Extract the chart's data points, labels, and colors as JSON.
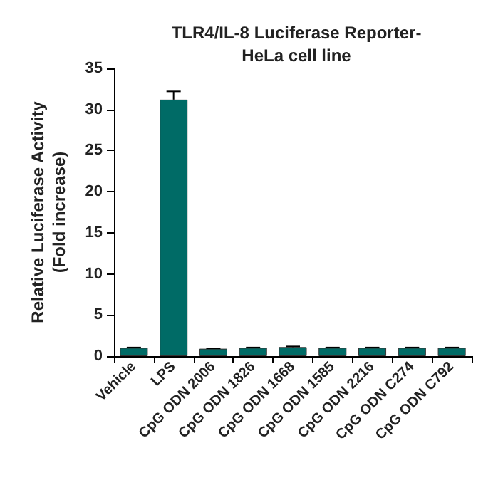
{
  "chart_data": {
    "type": "bar",
    "title": "TLR4/IL-8 Luciferase Reporter-\nHeLa cell line",
    "ylabel": "Relative Luciferase Activity\n(Fold increase)",
    "categories": [
      "Vehicle",
      "LPS",
      "CpG ODN 2006",
      "CpG ODN 1826",
      "CpG ODN 1668",
      "CpG ODN 1585",
      "CpG ODN 2216",
      "CpG ODN C274",
      "CpG ODN C792"
    ],
    "values": [
      1,
      31.2,
      0.9,
      1,
      1.1,
      1,
      1,
      1,
      1
    ],
    "errors": [
      0.05,
      1,
      0.05,
      0.05,
      0.08,
      0.05,
      0.05,
      0.05,
      0.05
    ],
    "color": "#006b66",
    "ylim": [
      0,
      35
    ],
    "yticks": [
      0,
      5,
      10,
      15,
      20,
      25,
      30,
      35
    ],
    "grid": false
  }
}
